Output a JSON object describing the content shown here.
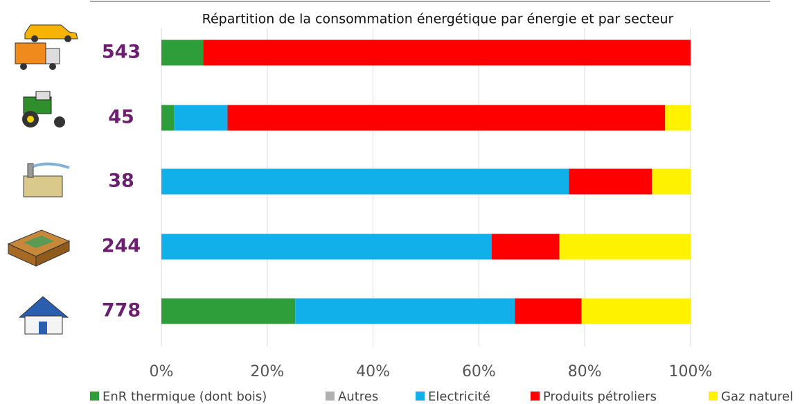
{
  "chart_data": {
    "type": "stacked-bar-horizontal",
    "title": "Répartition de la consommation énergétique par énergie et par secteur",
    "categories": [
      "543",
      "45",
      "38",
      "244",
      "778"
    ],
    "series": [
      {
        "name": "EnR thermique (dont bois)",
        "color": "#2e9e3a",
        "values": [
          7.9,
          2.4,
          0,
          0,
          25.3
        ]
      },
      {
        "name": "Autres",
        "color": "#b0b0b0",
        "values": [
          0,
          0,
          0,
          0,
          0
        ]
      },
      {
        "name": "Electricité",
        "color": "#12b0ea",
        "values": [
          0,
          10.1,
          77.0,
          62.4,
          41.5
        ]
      },
      {
        "name": "Produits pétroliers",
        "color": "#fe0000",
        "values": [
          92.1,
          82.7,
          15.7,
          12.8,
          12.6
        ]
      },
      {
        "name": "Gaz naturel",
        "color": "#fff200",
        "values": [
          0,
          4.8,
          7.3,
          24.8,
          20.6
        ]
      }
    ],
    "xlim": [
      0,
      100
    ],
    "xticks": [
      {
        "value": 0,
        "label": "0%"
      },
      {
        "value": 20,
        "label": "20%"
      },
      {
        "value": 40,
        "label": "40%"
      },
      {
        "value": 60,
        "label": "60%"
      },
      {
        "value": 80,
        "label": "80%"
      },
      {
        "value": 100,
        "label": "100%"
      }
    ],
    "grid": true
  }
}
